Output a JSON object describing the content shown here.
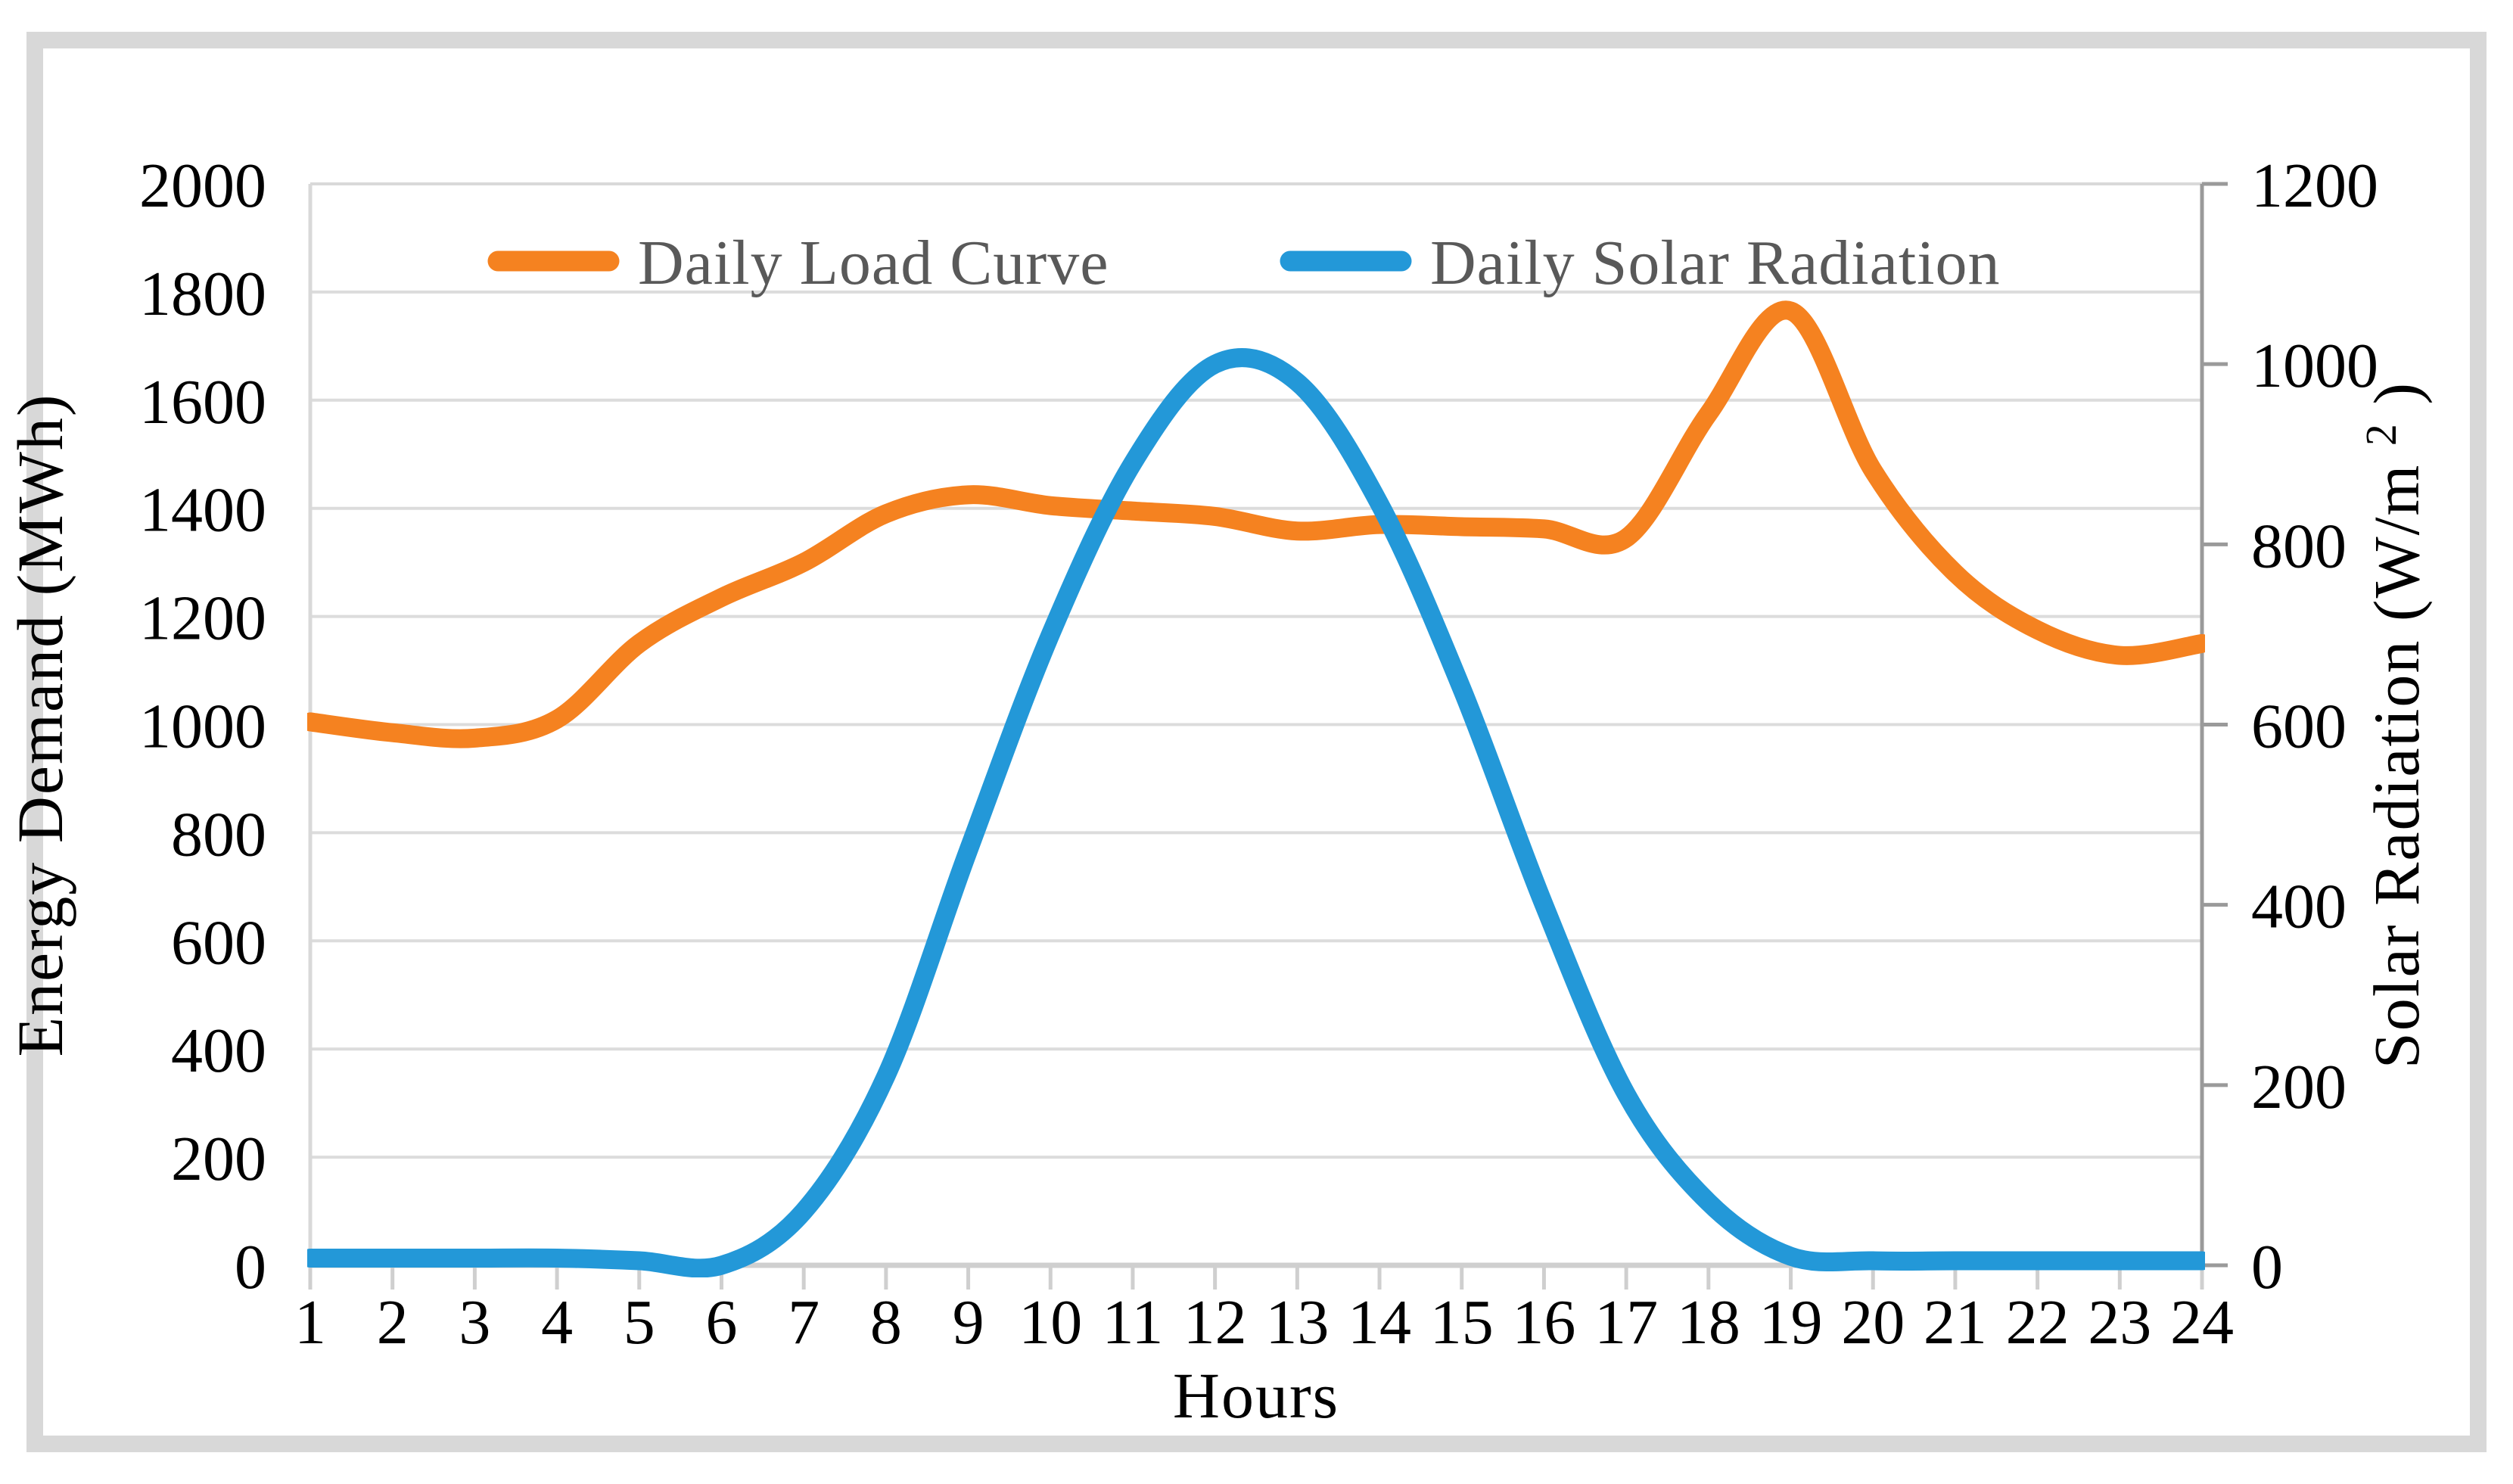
{
  "chart_data": {
    "type": "line",
    "title": "",
    "x_axis": {
      "title": "Hours",
      "ticks": [
        1,
        2,
        3,
        4,
        5,
        6,
        7,
        8,
        9,
        10,
        11,
        12,
        13,
        14,
        15,
        16,
        17,
        18,
        19,
        20,
        21,
        22,
        23,
        24
      ]
    },
    "left_axis": {
      "title": "Energy Demand (MWh)",
      "min": 0,
      "max": 2000,
      "step": 200,
      "ticks": [
        0,
        200,
        400,
        600,
        800,
        1000,
        1200,
        1400,
        1600,
        1800,
        2000
      ]
    },
    "right_axis": {
      "title_prefix": "Solar Radiation (W/m",
      "title_sup": "2",
      "title_suffix": ")",
      "min": 0,
      "max": 1200,
      "step": 200,
      "ticks": [
        0,
        200,
        400,
        600,
        800,
        1000,
        1200
      ]
    },
    "grid": "horizontal",
    "legend_position": "top-center-inside",
    "series": [
      {
        "name": "Daily Load Curve",
        "axis": "left",
        "color": "#F58220",
        "values": [
          1005,
          985,
          975,
          1010,
          1150,
          1235,
          1300,
          1390,
          1425,
          1405,
          1395,
          1385,
          1358,
          1370,
          1366,
          1362,
          1345,
          1575,
          1765,
          1470,
          1280,
          1175,
          1128,
          1150
        ]
      },
      {
        "name": "Daily Solar Radiation",
        "axis": "right",
        "color": "#2398D8",
        "values": [
          8,
          8,
          8,
          8,
          5,
          0,
          60,
          210,
          460,
          700,
          890,
          1000,
          980,
          845,
          640,
          400,
          190,
          70,
          10,
          5,
          5,
          5,
          5,
          5
        ]
      }
    ],
    "colors": {
      "gridline": "#DCDCDC",
      "frame_light": "#D9D9D9",
      "axis_bottom": "#CFCFCF",
      "axis_right": "#9A9A9A",
      "figure_border": "#D8D8D8",
      "legend_text": "#595959"
    }
  }
}
